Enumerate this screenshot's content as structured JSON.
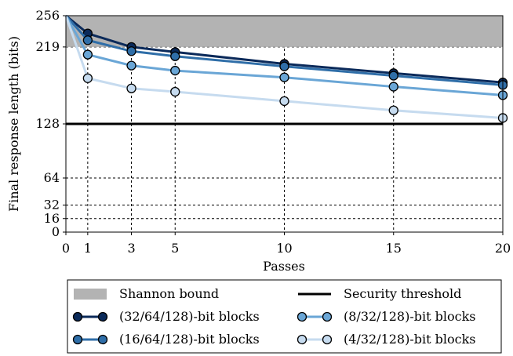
{
  "chart_data": {
    "type": "line",
    "xlabel": "Passes",
    "ylabel": "Final response length (bits)",
    "xlim": [
      0,
      20
    ],
    "ylim": [
      0,
      256
    ],
    "xticks": [
      0,
      1,
      3,
      5,
      10,
      15,
      20
    ],
    "yticks": [
      0,
      16,
      32,
      64,
      128,
      219,
      256
    ],
    "grid": "dashed",
    "legend_position": "bottom",
    "shannon_bound": {
      "name": "Shannon bound",
      "range": [
        219,
        256
      ],
      "color": "#b3b3b3"
    },
    "security_threshold": {
      "name": "Security threshold",
      "value": 128,
      "color": "#000000"
    },
    "markers": [
      1,
      3,
      5,
      10,
      15,
      20
    ],
    "series": [
      {
        "name": "(32/64/128)-bit blocks",
        "color": "#0b2a5a",
        "x": [
          0,
          1,
          3,
          5,
          10,
          15,
          20
        ],
        "values": [
          256,
          235,
          219,
          213,
          199,
          188,
          177
        ]
      },
      {
        "name": "(16/64/128)-bit blocks",
        "color": "#2f6ea8",
        "x": [
          0,
          1,
          3,
          5,
          10,
          15,
          20
        ],
        "values": [
          256,
          227,
          214,
          208,
          196,
          185,
          174
        ]
      },
      {
        "name": "(8/32/128)-bit blocks",
        "color": "#6aa6d6",
        "x": [
          0,
          1,
          3,
          5,
          10,
          15,
          20
        ],
        "values": [
          256,
          210,
          197,
          191,
          183,
          172,
          162
        ]
      },
      {
        "name": "(4/32/128)-bit blocks",
        "color": "#c6dbef",
        "x": [
          0,
          1,
          3,
          5,
          10,
          15,
          20
        ],
        "values": [
          256,
          182,
          170,
          166,
          155,
          144,
          135
        ]
      }
    ]
  }
}
